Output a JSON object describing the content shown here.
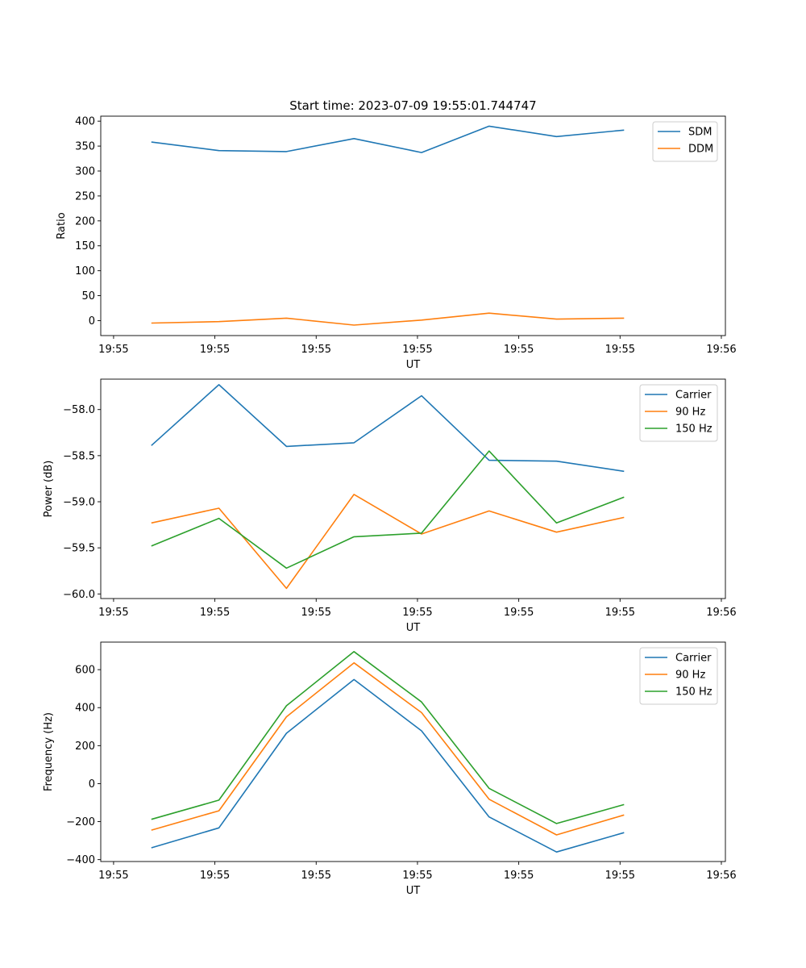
{
  "figure": {
    "suptitle": "Start time: 2023-07-09 19:55:01.744747"
  },
  "chart_data": [
    {
      "type": "line",
      "title": "Start time: 2023-07-09 19:55:01.744747",
      "xlabel": "UT",
      "ylabel": "Ratio",
      "xlim": [
        -0.75,
        8.5
      ],
      "ylim": [
        -30,
        410
      ],
      "yticks": [
        0,
        50,
        100,
        150,
        200,
        250,
        300,
        350,
        400
      ],
      "ytick_labels": [
        "0",
        "50",
        "100",
        "150",
        "200",
        "250",
        "300",
        "350",
        "400"
      ],
      "xticks": [
        -0.56,
        0.94,
        2.44,
        3.94,
        5.44,
        6.94,
        8.44
      ],
      "xtick_labels": [
        "19:55",
        "19:55",
        "19:55",
        "19:55",
        "19:55",
        "19:55",
        "19:56"
      ],
      "legend_position": "upper right",
      "x": [
        0,
        1,
        2,
        3,
        4,
        5,
        6,
        7
      ],
      "series": [
        {
          "name": "SDM",
          "color": "#1f77b4",
          "values": [
            358,
            341,
            339,
            365,
            337,
            390,
            369,
            382
          ]
        },
        {
          "name": "DDM",
          "color": "#ff7f0e",
          "values": [
            -5,
            -2,
            5,
            -9,
            1,
            15,
            3,
            5
          ]
        }
      ]
    },
    {
      "type": "line",
      "title": "",
      "xlabel": "UT",
      "ylabel": "Power (dB)",
      "xlim": [
        -0.75,
        8.5
      ],
      "ylim": [
        -60.05,
        -57.67
      ],
      "yticks": [
        -60.0,
        -59.5,
        -59.0,
        -58.5,
        -58.0
      ],
      "ytick_labels": [
        "−60.0",
        "−59.5",
        "−59.0",
        "−58.5",
        "−58.0"
      ],
      "xticks": [
        -0.56,
        0.94,
        2.44,
        3.94,
        5.44,
        6.94,
        8.44
      ],
      "xtick_labels": [
        "19:55",
        "19:55",
        "19:55",
        "19:55",
        "19:55",
        "19:55",
        "19:56"
      ],
      "legend_position": "upper right",
      "x": [
        0,
        1,
        2,
        3,
        4,
        5,
        6,
        7
      ],
      "series": [
        {
          "name": "Carrier",
          "color": "#1f77b4",
          "values": [
            -58.39,
            -57.73,
            -58.4,
            -58.36,
            -57.85,
            -58.55,
            -58.56,
            -58.67
          ]
        },
        {
          "name": "90 Hz",
          "color": "#ff7f0e",
          "values": [
            -59.23,
            -59.07,
            -59.94,
            -58.92,
            -59.35,
            -59.1,
            -59.33,
            -59.17
          ]
        },
        {
          "name": "150 Hz",
          "color": "#2ca02c",
          "values": [
            -59.48,
            -59.18,
            -59.72,
            -59.38,
            -59.34,
            -58.45,
            -59.23,
            -58.95
          ]
        }
      ]
    },
    {
      "type": "line",
      "title": "",
      "xlabel": "UT",
      "ylabel": "Frequency (Hz)",
      "xlim": [
        -0.75,
        8.5
      ],
      "ylim": [
        -410,
        745
      ],
      "yticks": [
        -400,
        -200,
        0,
        200,
        400,
        600
      ],
      "ytick_labels": [
        "−400",
        "−200",
        "0",
        "200",
        "400",
        "600"
      ],
      "xticks": [
        -0.56,
        0.94,
        2.44,
        3.94,
        5.44,
        6.94,
        8.44
      ],
      "xtick_labels": [
        "19:55",
        "19:55",
        "19:55",
        "19:55",
        "19:55",
        "19:55",
        "19:56"
      ],
      "legend_position": "upper right",
      "x": [
        0,
        1,
        2,
        3,
        4,
        5,
        6,
        7
      ],
      "series": [
        {
          "name": "Carrier",
          "color": "#1f77b4",
          "values": [
            -338,
            -233,
            265,
            548,
            278,
            -175,
            -360,
            -258
          ]
        },
        {
          "name": "90 Hz",
          "color": "#ff7f0e",
          "values": [
            -245,
            -143,
            352,
            636,
            374,
            -82,
            -270,
            -165
          ]
        },
        {
          "name": "150 Hz",
          "color": "#2ca02c",
          "values": [
            -188,
            -87,
            410,
            695,
            430,
            -25,
            -210,
            -110
          ]
        }
      ]
    }
  ]
}
